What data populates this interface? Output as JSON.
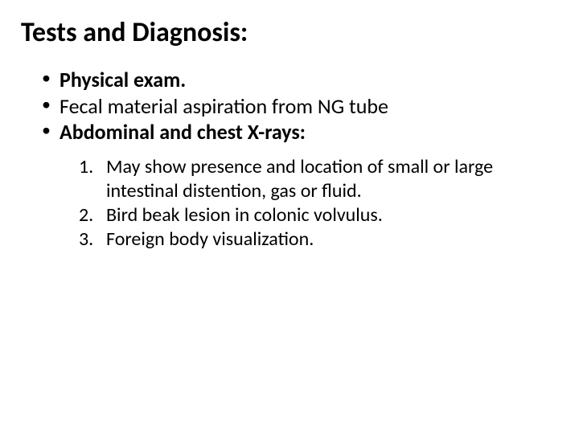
{
  "slide": {
    "title": "Tests and Diagnosis:",
    "bullets": [
      {
        "text": "Physical exam.",
        "bold": true
      },
      {
        "text": "Fecal material aspiration from NG tube",
        "bold": false
      },
      {
        "text": "Abdominal and chest X-rays:",
        "bold": true
      }
    ],
    "numbered": [
      "May show presence and location of small or large intestinal distention, gas or fluid.",
      "Bird beak lesion in colonic volvulus.",
      "Foreign body visualization."
    ],
    "colors": {
      "background": "#ffffff",
      "text": "#000000"
    },
    "typography": {
      "title_fontsize": 34,
      "bullet_fontsize": 26,
      "numbered_fontsize": 24,
      "font_family": "Calibri"
    }
  }
}
